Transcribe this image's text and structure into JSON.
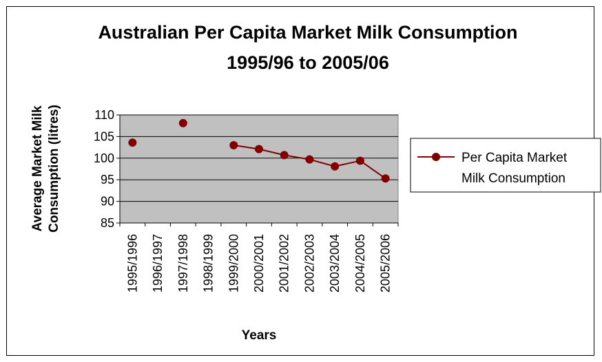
{
  "chart_data": {
    "type": "line",
    "title": [
      "Australian Per Capita Market Milk Consumption",
      "1995/96 to 2005/06"
    ],
    "xlabel": "Years",
    "ylabel": [
      "Average Market Milk",
      "Consumption (litres)"
    ],
    "categories": [
      "1995/1996",
      "1996/1997",
      "1997/1998",
      "1998/1999",
      "1999/2000",
      "2000/2001",
      "2001/2002",
      "2002/2003",
      "2003/2004",
      "2004/2005",
      "2005/2006"
    ],
    "series": [
      {
        "name": [
          "Per Capita Market",
          "Milk Consumption"
        ],
        "values": [
          103.6,
          null,
          108.1,
          null,
          103.0,
          102.1,
          100.7,
          99.7,
          98.1,
          99.4,
          95.3
        ],
        "color": "#800000"
      }
    ],
    "ylim": [
      85,
      110
    ],
    "yticks": [
      85,
      90,
      95,
      100,
      105,
      110
    ],
    "grid": true,
    "plot_background": "#c0c0c0",
    "legend_position": "right"
  }
}
